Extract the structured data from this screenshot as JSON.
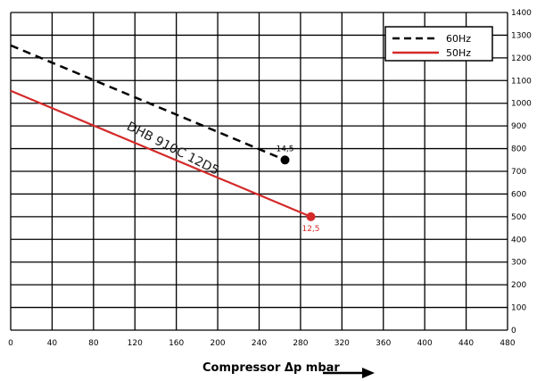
{
  "chart_data": {
    "type": "line",
    "xlabel": "Compressor  Δp  mbar",
    "ylabel": "",
    "xlim": [
      0,
      480
    ],
    "ylim": [
      0,
      1400
    ],
    "x_ticks": [
      0,
      40,
      80,
      120,
      160,
      200,
      240,
      280,
      320,
      360,
      400,
      440,
      480
    ],
    "y_ticks": [
      0,
      100,
      200,
      300,
      400,
      500,
      600,
      700,
      800,
      900,
      1000,
      1100,
      1200,
      1300,
      1400
    ],
    "y_axis_side": "right",
    "grid": true,
    "legend_position": "top-right",
    "series": [
      {
        "name": "60Hz",
        "style": "dashed",
        "color": "#000000",
        "points": [
          [
            0,
            1255
          ],
          [
            265,
            750
          ]
        ],
        "end_label": "14,5"
      },
      {
        "name": "50Hz",
        "style": "solid",
        "color": "#d42a2a",
        "points": [
          [
            0,
            1055
          ],
          [
            290,
            500
          ]
        ],
        "end_label": "12,5"
      }
    ],
    "annotations": [
      {
        "text": "DHB 910C 12D5",
        "x": 155,
        "y": 785
      }
    ]
  }
}
